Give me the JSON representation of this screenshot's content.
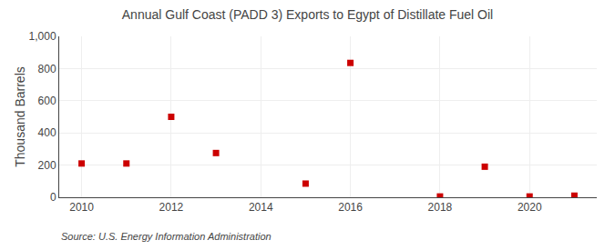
{
  "chart_data": {
    "type": "scatter",
    "title": "Annual Gulf Coast (PADD 3) Exports to Egypt of Distillate Fuel Oil",
    "y_label": "Thousand Barrels",
    "annotations": [
      "Source: U.S. Energy Information Administration"
    ],
    "x": [
      2010,
      2011,
      2012,
      2013,
      2015,
      2016,
      2018,
      2019,
      2020,
      2021
    ],
    "values": [
      210,
      210,
      500,
      275,
      85,
      835,
      5,
      190,
      5,
      10
    ],
    "color": "#cc0000",
    "marker": "square",
    "xlim": [
      2009.5,
      2021.5
    ],
    "ylim": [
      0,
      1000
    ],
    "xticks": [
      2010,
      2012,
      2014,
      2016,
      2018,
      2020
    ],
    "yticks": [
      0,
      200,
      400,
      600,
      800,
      {
        "value": 1000,
        "label": "1,000"
      }
    ],
    "grid": true
  }
}
